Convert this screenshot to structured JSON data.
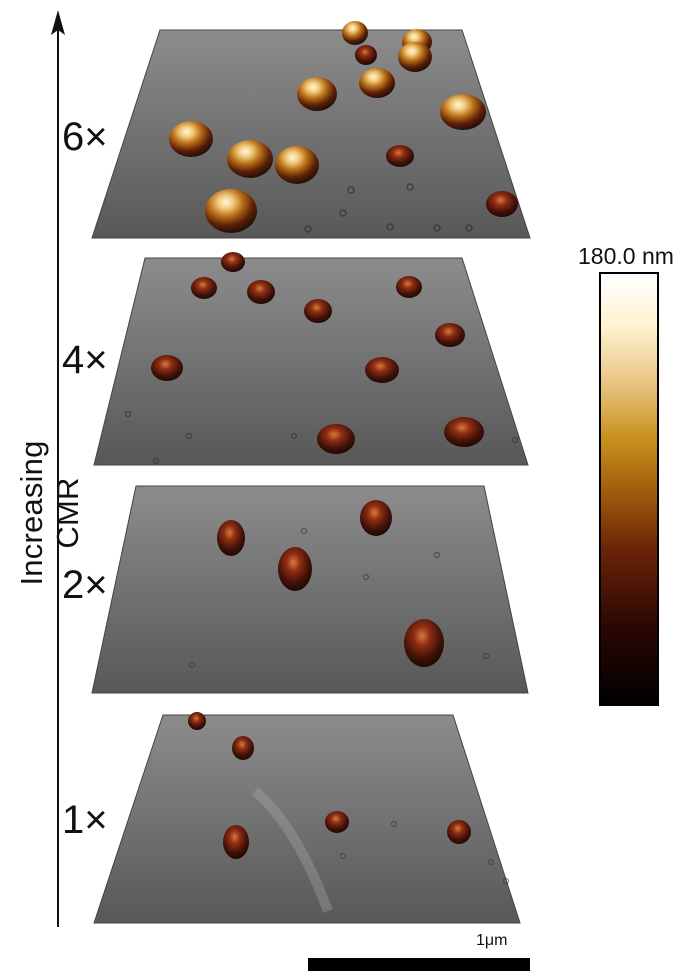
{
  "axis": {
    "label": "Increasing CMR"
  },
  "panels": [
    {
      "multiplier": "6×"
    },
    {
      "multiplier": "4×"
    },
    {
      "multiplier": "2×"
    },
    {
      "multiplier": "1×"
    }
  ],
  "colorbar": {
    "max_label": "180.0 nm",
    "colors": {
      "top": "#ffffff",
      "mid": "#a25f0d",
      "bottom": "#000000"
    }
  },
  "scalebar": {
    "label": "1μm"
  },
  "icons": {
    "axis_arrow": "arrow-up-icon"
  }
}
